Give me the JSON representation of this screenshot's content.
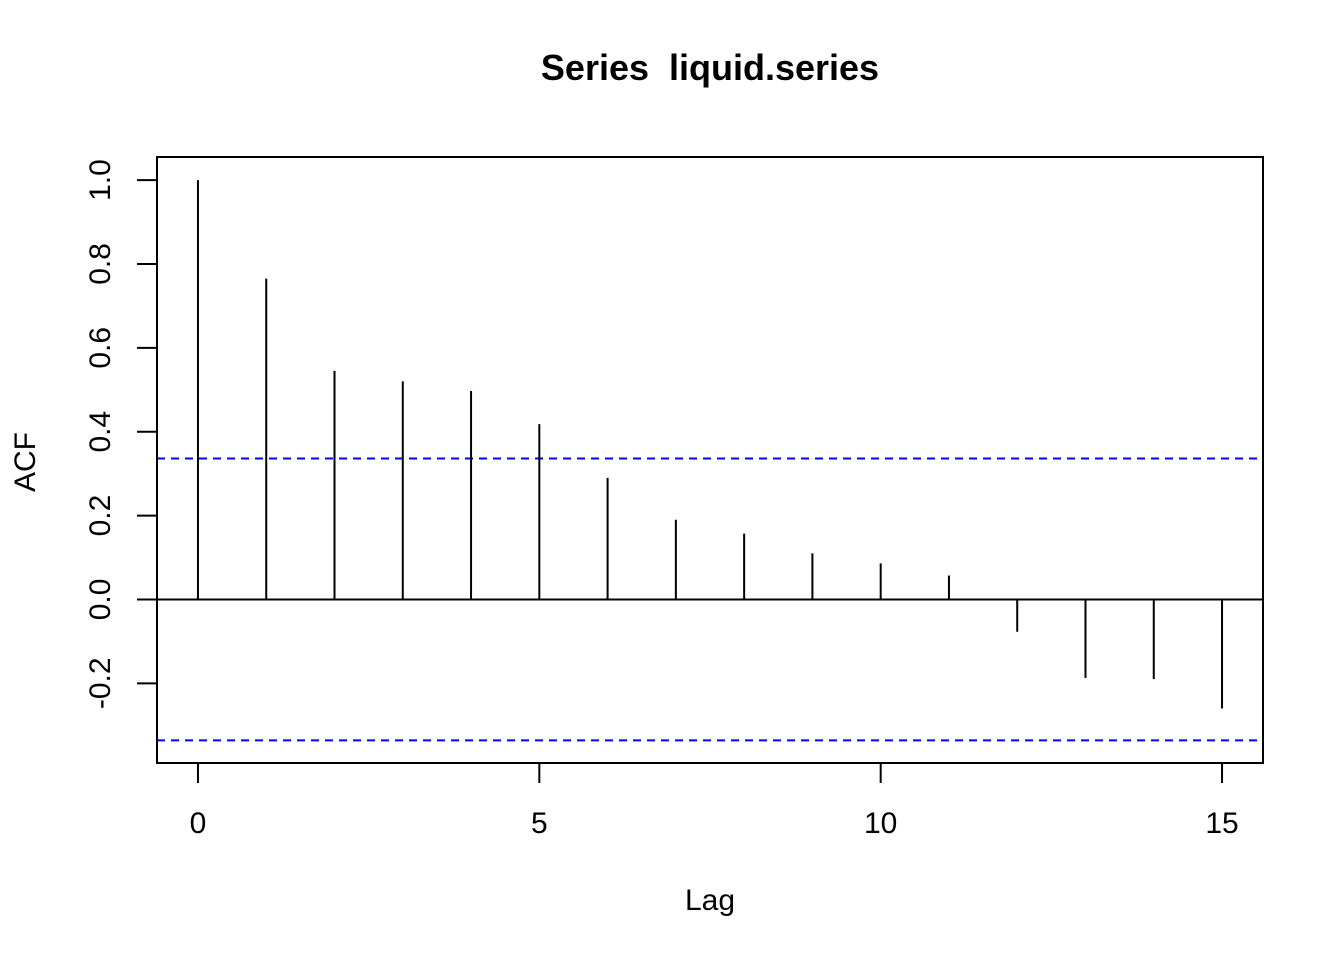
{
  "chart_data": {
    "type": "bar",
    "title": "Series  liquid.series",
    "xlabel": "Lag",
    "ylabel": "ACF",
    "x": [
      0,
      1,
      2,
      3,
      4,
      5,
      6,
      7,
      8,
      9,
      10,
      11,
      12,
      13,
      14,
      15
    ],
    "values": [
      1.0,
      0.765,
      0.545,
      0.52,
      0.497,
      0.418,
      0.29,
      0.19,
      0.157,
      0.11,
      0.086,
      0.057,
      -0.077,
      -0.187,
      -0.19,
      -0.26
    ],
    "xlim": [
      -0.6,
      15.6
    ],
    "ylim": [
      -0.39,
      1.055
    ],
    "x_ticks": [
      0,
      5,
      10,
      15
    ],
    "x_tick_labels": [
      "0",
      "5",
      "10",
      "15"
    ],
    "y_ticks": [
      -0.2,
      0.0,
      0.2,
      0.4,
      0.6,
      0.8,
      1.0
    ],
    "y_tick_labels": [
      "-0.2",
      "0.0",
      "0.2",
      "0.4",
      "0.6",
      "0.8",
      "1.0"
    ],
    "confidence_bounds": [
      0.336,
      -0.336
    ],
    "colors": {
      "spikes": "#000000",
      "bounds": "#0000ff",
      "axes": "#000000"
    },
    "grid": false,
    "legend": "none"
  }
}
